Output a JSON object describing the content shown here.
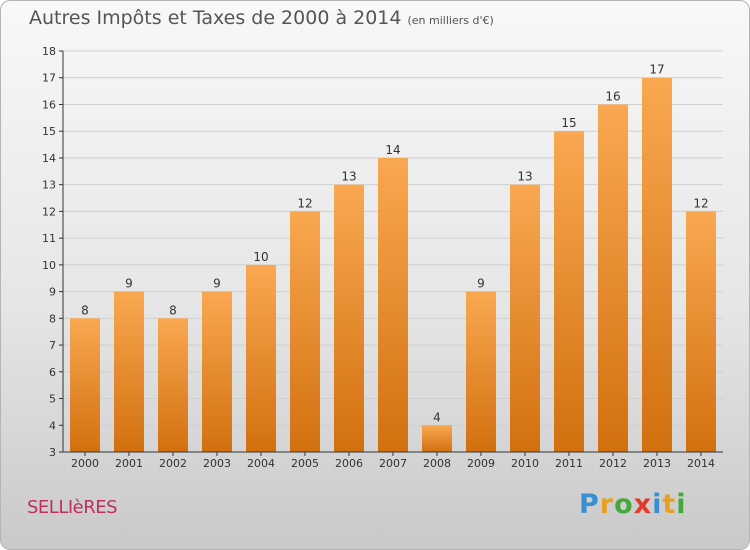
{
  "title": {
    "main": "Autres Impôts et Taxes de 2000 à 2014",
    "unit": "(en milliers d'€)"
  },
  "commune": "SELLIèRES",
  "brand": {
    "text": "Proxiti",
    "letters": [
      {
        "ch": "P",
        "color": "#3a8fd0"
      },
      {
        "ch": "r",
        "color": "#e8a020"
      },
      {
        "ch": "o",
        "color": "#46a83c"
      },
      {
        "ch": "x",
        "color": "#e03a2a"
      },
      {
        "ch": "i",
        "color": "#3a8fd0"
      },
      {
        "ch": "t",
        "color": "#e8a020"
      },
      {
        "ch": "i",
        "color": "#46a83c"
      }
    ]
  },
  "colors": {
    "bar_light": "#f9a851",
    "bar_dark": "#d2700f",
    "axis": "#333333",
    "grid": "#cfcfcf"
  },
  "chart_data": {
    "type": "bar",
    "categories": [
      "2000",
      "2001",
      "2002",
      "2003",
      "2004",
      "2005",
      "2006",
      "2007",
      "2008",
      "2009",
      "2010",
      "2011",
      "2012",
      "2013",
      "2014"
    ],
    "values": [
      8,
      9,
      8,
      9,
      10,
      12,
      13,
      14,
      4,
      9,
      13,
      15,
      16,
      17,
      12
    ],
    "title": "Autres Impôts et Taxes de 2000 à 2014",
    "xlabel": "",
    "ylabel": "",
    "ylim": [
      3,
      18
    ],
    "yticks": [
      3,
      4,
      5,
      6,
      7,
      8,
      9,
      10,
      11,
      12,
      13,
      14,
      15,
      16,
      17,
      18
    ],
    "grid": true,
    "legend": "none"
  }
}
